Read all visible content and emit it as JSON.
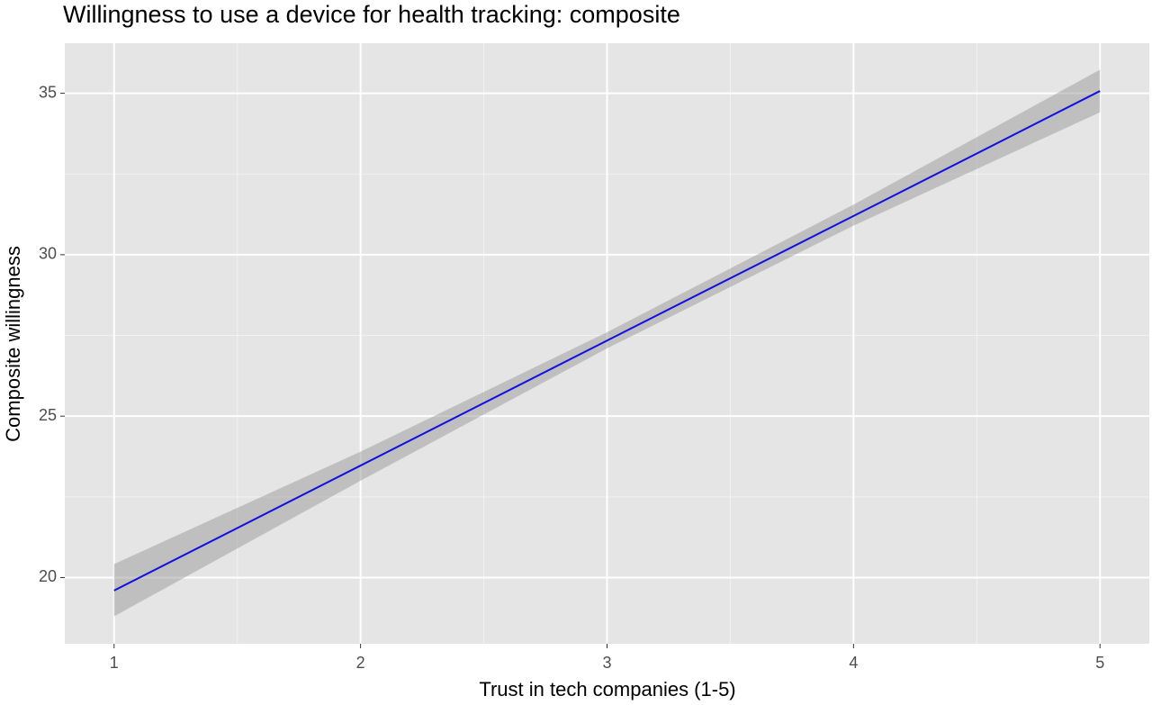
{
  "chart_data": {
    "type": "line",
    "title": "Willingness to use a device for health tracking: composite",
    "x_label": "Trust in tech companies (1-5)",
    "y_label": "Composite willingness",
    "x": [
      1,
      2,
      3,
      4,
      5
    ],
    "values": [
      19.6,
      23.47,
      27.34,
      31.2,
      35.07
    ],
    "lower": [
      18.8,
      23.0,
      27.1,
      30.9,
      34.41
    ],
    "upper": [
      20.42,
      23.9,
      27.6,
      31.55,
      35.73
    ],
    "color": "#1010e0",
    "band_color": "#999999",
    "xlim": [
      0.8,
      5.2
    ],
    "xticks": [
      1,
      2,
      3,
      4,
      5
    ],
    "ylim": [
      17.95,
      36.55
    ],
    "yticks": [
      20,
      25,
      30,
      35
    ],
    "grid": true
  }
}
